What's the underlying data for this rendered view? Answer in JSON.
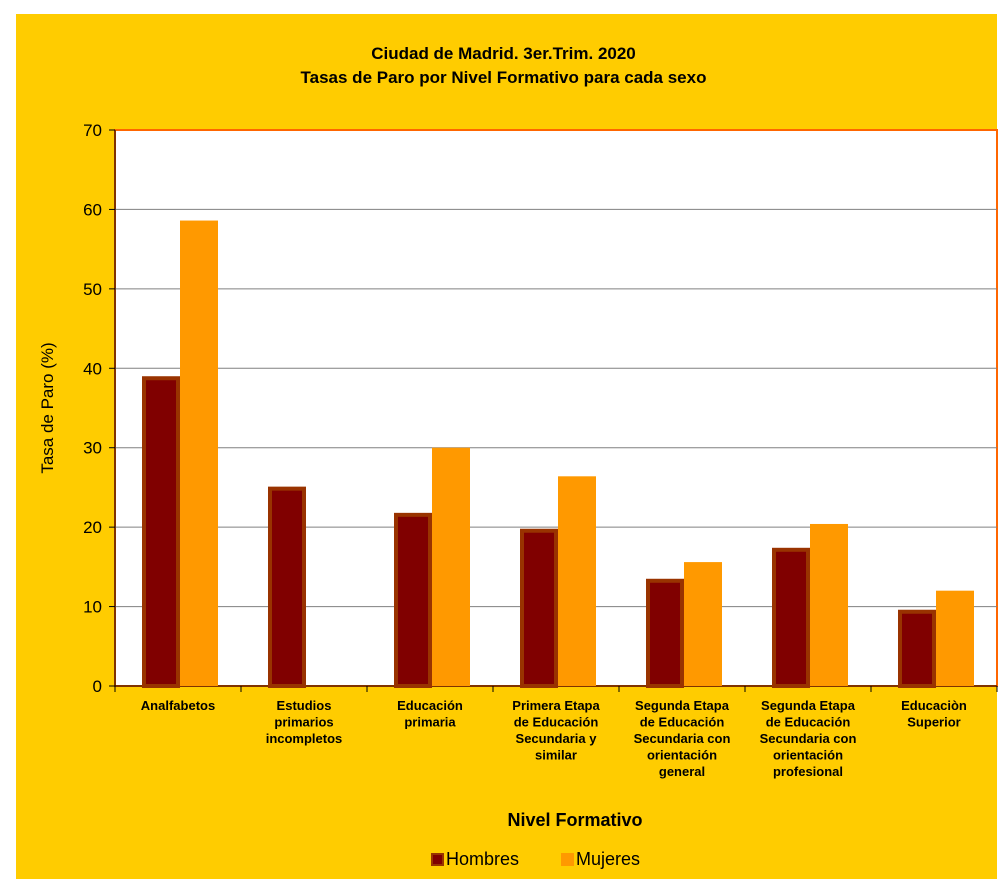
{
  "colors": {
    "background": "#ffcc00",
    "plot_background": "#ffffff",
    "plot_border": "#ff6600",
    "hombres": "#800000",
    "hombres_outline": "#993300",
    "mujeres": "#ff9900",
    "gridline": "#808080"
  },
  "chart_data": {
    "type": "bar",
    "title": "Ciudad de Madrid. 3er.Trim. 2020",
    "subtitle": "Tasas de Paro por Nivel Formativo para cada sexo",
    "xlabel": "Nivel Formativo",
    "ylabel": "Tasa de Paro (%)",
    "ylim": [
      0,
      70
    ],
    "yticks": [
      0,
      10,
      20,
      30,
      40,
      50,
      60,
      70
    ],
    "grid": true,
    "legend_position": "bottom",
    "categories": [
      [
        "Analfabetos"
      ],
      [
        "Estudios",
        "primarios",
        "incompletos"
      ],
      [
        "Educación",
        "primaria"
      ],
      [
        "Primera Etapa",
        "de Educación",
        "Secundaria y",
        "similar"
      ],
      [
        "Segunda Etapa",
        "de Educación",
        "Secundaria con",
        "orientación",
        "general"
      ],
      [
        "Segunda Etapa",
        "de Educación",
        "Secundaria con",
        "orientación",
        "profesional"
      ],
      [
        "Educaciòn",
        "Superior"
      ]
    ],
    "series": [
      {
        "name": "Hombres",
        "values": [
          39.0,
          25.1,
          21.8,
          19.8,
          13.5,
          17.4,
          9.6
        ]
      },
      {
        "name": "Mujeres",
        "values": [
          58.6,
          null,
          30.0,
          26.4,
          15.6,
          20.4,
          12.0
        ]
      }
    ]
  }
}
